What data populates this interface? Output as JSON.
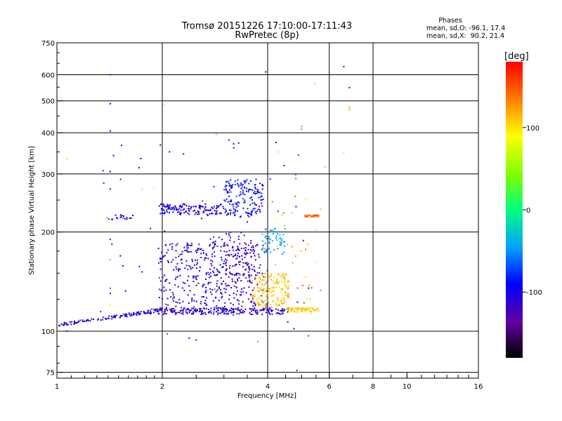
{
  "chart_data": {
    "type": "scatter",
    "title": "Tromsø 20151226 17:10:00-17:11:43",
    "subtitle": "RwPretec (8p)",
    "xlabel": "Frequency [MHz]",
    "ylabel": "Stationary phase Virtual Height [km]",
    "x_scale": "log",
    "y_scale": "log",
    "xlim": [
      1,
      16
    ],
    "ylim": [
      72,
      750
    ],
    "x_ticks": [
      1,
      2,
      4,
      6,
      8,
      10,
      16
    ],
    "x_tick_labels": [
      "1",
      "2",
      "4",
      "6",
      "8",
      "10",
      "16"
    ],
    "y_ticks": [
      75,
      100,
      200,
      300,
      400,
      500,
      600,
      750
    ],
    "y_tick_labels": [
      "75",
      "100",
      "200",
      "300",
      "400",
      "500",
      "600",
      "750"
    ],
    "grid": true,
    "phase_header": {
      "title": "Phases",
      "line_o": "mean, sd,O: -96.1, 17.4",
      "line_x": "mean, sd,X:  90.2, 21.4"
    },
    "colorbar": {
      "label": "[deg]",
      "range": [
        -180,
        180
      ],
      "ticks": [
        100,
        0,
        -100
      ],
      "tick_labels": [
        "100",
        "0",
        "-100"
      ]
    },
    "clusters": [
      {
        "f": [
          1.0,
          1.85
        ],
        "h": [
          103,
          116
        ],
        "phase": [
          -125,
          -95
        ],
        "n": 110,
        "trend": "rise"
      },
      {
        "f": [
          1.85,
          4.7
        ],
        "h": [
          112,
          118
        ],
        "phase": [
          -125,
          -100
        ],
        "n": 230,
        "trend": "flat"
      },
      {
        "f": [
          1.95,
          4.0
        ],
        "h": [
          115,
          185
        ],
        "phase": [
          -125,
          -90
        ],
        "n": 420,
        "trend": "none"
      },
      {
        "f": [
          2.7,
          3.6
        ],
        "h": [
          140,
          200
        ],
        "phase": [
          -130,
          -100
        ],
        "n": 90,
        "trend": "none"
      },
      {
        "f": [
          1.95,
          3.0
        ],
        "h": [
          225,
          245
        ],
        "phase": [
          -115,
          -90
        ],
        "n": 140,
        "trend": "flat"
      },
      {
        "f": [
          3.0,
          3.9
        ],
        "h": [
          222,
          290
        ],
        "phase": [
          -110,
          -70
        ],
        "n": 170,
        "trend": "none"
      },
      {
        "f": [
          1.4,
          1.65
        ],
        "h": [
          218,
          226
        ],
        "phase": [
          -110,
          -100
        ],
        "n": 18,
        "trend": "flat"
      },
      {
        "f": [
          3.85,
          4.5
        ],
        "h": [
          170,
          205
        ],
        "phase": [
          -55,
          -25
        ],
        "n": 55,
        "trend": "none"
      },
      {
        "f": [
          3.6,
          4.6
        ],
        "h": [
          118,
          150
        ],
        "phase": [
          95,
          130
        ],
        "n": 170,
        "trend": "none"
      },
      {
        "f": [
          4.5,
          5.6
        ],
        "h": [
          114,
          118
        ],
        "phase": [
          100,
          118
        ],
        "n": 70,
        "trend": "flat"
      },
      {
        "f": [
          5.1,
          5.6
        ],
        "h": [
          222,
          226
        ],
        "phase": [
          130,
          160
        ],
        "n": 30,
        "trend": "flat"
      },
      {
        "f": [
          4.1,
          5.8
        ],
        "h": [
          120,
          260
        ],
        "phase": [
          80,
          160
        ],
        "n": 30,
        "trend": "none"
      },
      {
        "f": [
          1.3,
          5.6
        ],
        "h": [
          95,
          380
        ],
        "phase": [
          -120,
          -60
        ],
        "n": 55,
        "trend": "none"
      },
      {
        "f": [
          1.0,
          6.0
        ],
        "h": [
          110,
          600
        ],
        "phase": [
          60,
          170
        ],
        "n": 14,
        "trend": "none"
      }
    ],
    "points": [
      {
        "f": 1.42,
        "h": 600,
        "p": -100
      },
      {
        "f": 1.42,
        "h": 490,
        "p": -100
      },
      {
        "f": 1.42,
        "h": 405,
        "p": -95
      },
      {
        "f": 1.42,
        "h": 305,
        "p": -90
      },
      {
        "f": 1.42,
        "h": 270,
        "p": -105
      },
      {
        "f": 1.42,
        "h": 190,
        "p": -80
      },
      {
        "f": 1.42,
        "h": 165,
        "p": 10
      },
      {
        "f": 1.42,
        "h": 135,
        "p": -60
      },
      {
        "f": 1.42,
        "h": 120,
        "p": 100
      },
      {
        "f": 3.95,
        "h": 612,
        "p": -105
      },
      {
        "f": 6.6,
        "h": 635,
        "p": -100
      },
      {
        "f": 6.85,
        "h": 548,
        "p": -110
      },
      {
        "f": 6.85,
        "h": 478,
        "p": 130
      },
      {
        "f": 6.85,
        "h": 470,
        "p": 130
      },
      {
        "f": 6.6,
        "h": 348,
        "p": 100
      },
      {
        "f": 5.45,
        "h": 565,
        "p": 110
      },
      {
        "f": 5.0,
        "h": 418,
        "p": 140
      },
      {
        "f": 5.0,
        "h": 410,
        "p": 140
      },
      {
        "f": 3.1,
        "h": 380,
        "p": -110
      },
      {
        "f": 3.2,
        "h": 370,
        "p": -100
      },
      {
        "f": 3.2,
        "h": 360,
        "p": -110
      },
      {
        "f": 2.3,
        "h": 345,
        "p": -100
      },
      {
        "f": 4.3,
        "h": 350,
        "p": 100
      },
      {
        "f": 2.5,
        "h": 94,
        "p": -140
      },
      {
        "f": 3.75,
        "h": 93,
        "p": 150
      },
      {
        "f": 4.85,
        "h": 76,
        "p": -130
      },
      {
        "f": 1.07,
        "h": 100,
        "p": -110
      },
      {
        "f": 1.75,
        "h": 270,
        "p": 110
      },
      {
        "f": 1.85,
        "h": 205,
        "p": -100
      }
    ]
  }
}
